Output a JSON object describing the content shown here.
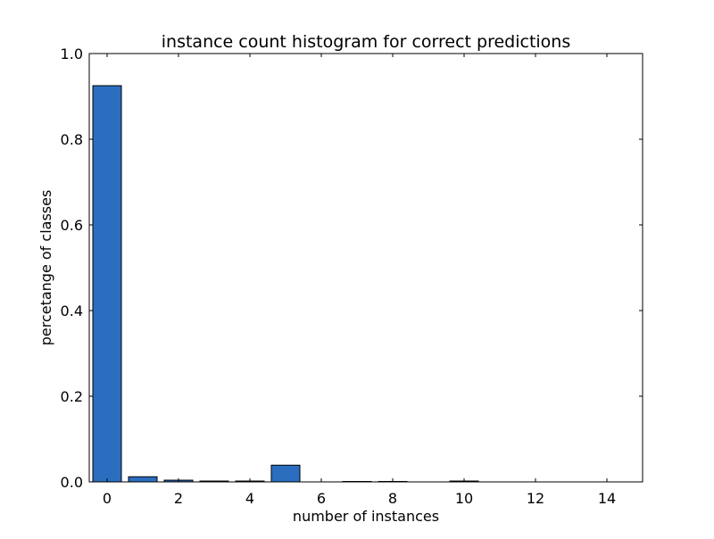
{
  "chart_data": {
    "type": "bar",
    "title": "instance count histogram for correct predictions",
    "xlabel": "number of instances",
    "ylabel": "percetange of classes",
    "x": [
      0,
      1,
      2,
      3,
      4,
      5,
      6,
      7,
      8,
      9,
      10,
      11,
      12,
      13,
      14
    ],
    "values": [
      0.925,
      0.012,
      0.004,
      0.002,
      0.002,
      0.039,
      0.0,
      0.001,
      0.001,
      0.0,
      0.002,
      0.0,
      0.0,
      0.0,
      0.0
    ],
    "bar_width": 0.8,
    "xlim": [
      -0.5,
      15
    ],
    "ylim": [
      0,
      1.0
    ],
    "xticks": [
      0,
      2,
      4,
      6,
      8,
      10,
      12,
      14
    ],
    "xtick_labels": [
      "0",
      "2",
      "4",
      "6",
      "8",
      "10",
      "12",
      "14"
    ],
    "yticks": [
      0.0,
      0.2,
      0.4,
      0.6,
      0.8,
      1.0
    ],
    "ytick_labels": [
      "0.0",
      "0.2",
      "0.4",
      "0.6",
      "0.8",
      "1.0"
    ],
    "bar_color": "#2b6ebf",
    "edge_color": "#000000",
    "grid": false,
    "legend": "none"
  }
}
